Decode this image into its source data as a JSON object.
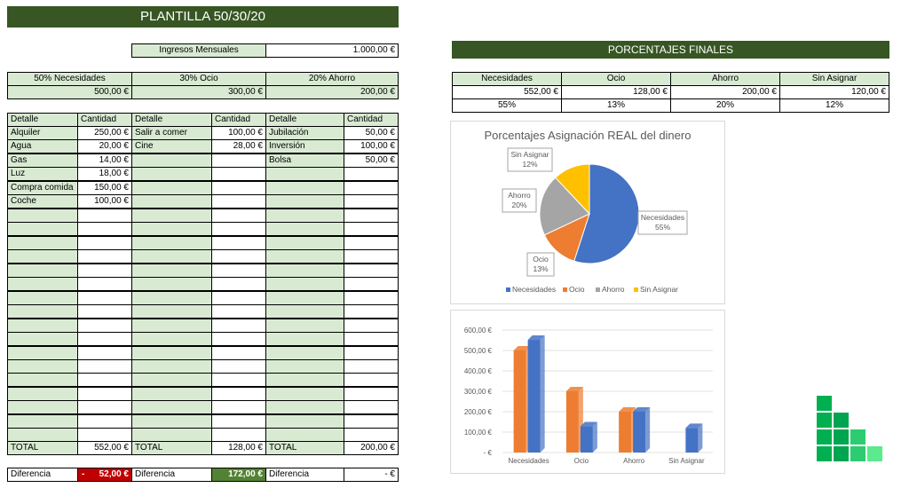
{
  "title": "PLANTILLA 50/30/20",
  "income": {
    "label": "Ingresos Mensuales",
    "value": "1.000,00 €"
  },
  "budget": {
    "headers": [
      "50% Necesidades",
      "30% Ocio",
      "20% Ahorro"
    ],
    "values": [
      "500,00 €",
      "300,00 €",
      "200,00 €"
    ]
  },
  "detail_table": {
    "col_detalle": "Detalle",
    "col_cantidad": "Cantidad",
    "rows": [
      [
        "Alquiler",
        "250,00 €",
        "Salir a comer",
        "100,00 €",
        "Jubilación",
        "50,00 €"
      ],
      [
        "Agua",
        "20,00 €",
        "Cine",
        "28,00 €",
        "Inversión",
        "100,00 €"
      ],
      [
        "Gas",
        "14,00 €",
        "",
        "",
        "Bolsa",
        "50,00 €"
      ],
      [
        "Luz",
        "18,00 €",
        "",
        "",
        "",
        ""
      ],
      [
        "Compra comida",
        "150,00 €",
        "",
        "",
        "",
        ""
      ],
      [
        "Coche",
        "100,00 €",
        "",
        "",
        "",
        ""
      ]
    ]
  },
  "totals": {
    "label": "TOTAL",
    "values": [
      "552,00 €",
      "128,00 €",
      "200,00 €"
    ]
  },
  "differences": {
    "label": "Diferencia",
    "neg_sign": "-",
    "values": [
      "52,00 €",
      "172,00 €",
      "-    €"
    ],
    "colors": [
      "#c00000",
      "#548235",
      "#ffffff"
    ]
  },
  "final": {
    "title": "PORCENTAJES FINALES",
    "headers": [
      "Necesidades",
      "Ocio",
      "Ahorro",
      "Sin Asignar"
    ],
    "amounts": [
      "552,00 €",
      "128,00 €",
      "200,00 €",
      "120,00 €"
    ],
    "percents": [
      "55%",
      "13%",
      "20%",
      "12%"
    ]
  },
  "pie_chart": {
    "title": "Porcentajes Asignación REAL del dinero",
    "legend": [
      "Necesidades",
      "Ocio",
      "Ahorro",
      "Sin Asignar"
    ]
  },
  "chart_data": [
    {
      "type": "pie",
      "title": "Porcentajes Asignación REAL del dinero",
      "categories": [
        "Necesidades",
        "Ocio",
        "Ahorro",
        "Sin Asignar"
      ],
      "values": [
        55,
        13,
        20,
        12
      ],
      "labels": [
        "Necesidades\n55%",
        "Ocio\n13%",
        "Ahorro\n20%",
        "Sin Asignar\n12%"
      ],
      "colors": [
        "#4472c4",
        "#ed7d31",
        "#a5a5a5",
        "#ffc000"
      ],
      "legend": "bottom"
    },
    {
      "type": "bar",
      "categories": [
        "Necesidades",
        "Ocio",
        "Ahorro",
        "Sin Asignar"
      ],
      "series": [
        {
          "values": [
            500,
            300,
            200,
            null
          ],
          "color": "#ed7d31"
        },
        {
          "values": [
            552,
            128,
            200,
            120
          ],
          "color": "#4472c4"
        }
      ],
      "yticks": [
        "-  €",
        "100,00 €",
        "200,00 €",
        "300,00 €",
        "400,00 €",
        "500,00 €",
        "600,00 €"
      ],
      "ylim": [
        0,
        600
      ],
      "grid": true
    }
  ],
  "logo_colors": [
    "#00b050",
    "#00a550",
    "#2ecc71",
    "#5bea8c"
  ]
}
